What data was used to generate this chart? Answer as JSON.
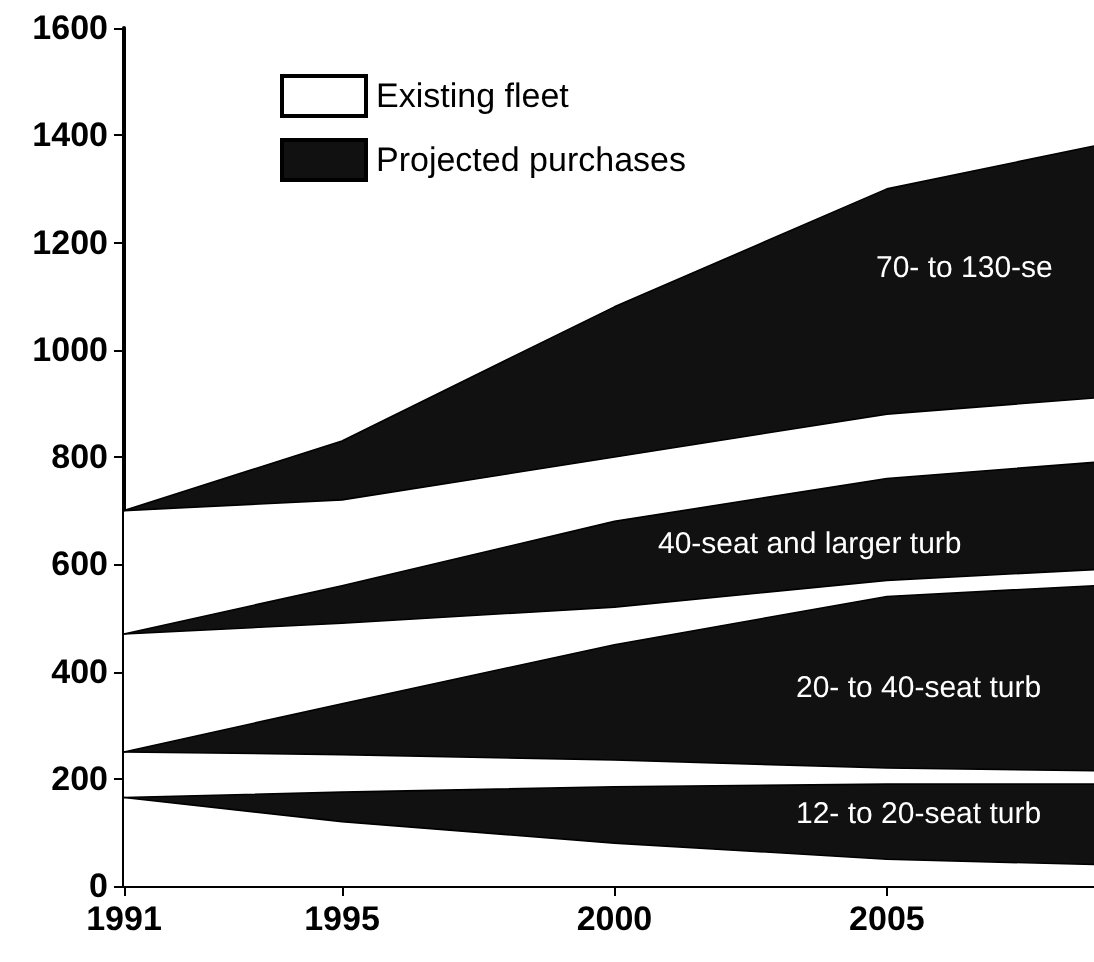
{
  "chart_data": {
    "type": "area",
    "stacked": true,
    "x": [
      1991,
      1995,
      2000,
      2005,
      2008.8
    ],
    "series": [
      {
        "name": "Existing fleet",
        "color": "#ffffff",
        "values": [
          165,
          120,
          80,
          50,
          40
        ]
      },
      {
        "name": "Projected purchases",
        "color": "#111111",
        "values": [
          0,
          55,
          105,
          140,
          150
        ]
      },
      {
        "color": "#ffffff",
        "values": [
          85,
          70,
          50,
          30,
          25
        ]
      },
      {
        "color": "#111111",
        "values": [
          0,
          95,
          215,
          320,
          345
        ]
      },
      {
        "color": "#ffffff",
        "values": [
          220,
          150,
          70,
          30,
          30
        ]
      },
      {
        "color": "#111111",
        "values": [
          0,
          70,
          160,
          190,
          200
        ]
      },
      {
        "color": "#ffffff",
        "values": [
          230,
          160,
          120,
          120,
          120
        ]
      },
      {
        "color": "#111111",
        "values": [
          0,
          110,
          280,
          420,
          470
        ]
      }
    ],
    "xlim": [
      1991,
      2008.8
    ],
    "xticks": [
      1991,
      1995,
      2000,
      2005
    ],
    "ylim": [
      0,
      1600
    ],
    "yticks": [
      0,
      200,
      400,
      600,
      800,
      1000,
      1200,
      1400,
      1600
    ],
    "grid": false,
    "legend": "top left",
    "annotations": [
      "70- to 130-se",
      "40-seat and larger turb",
      "20- to 40-seat turb",
      "12- to 20-seat turb"
    ]
  }
}
